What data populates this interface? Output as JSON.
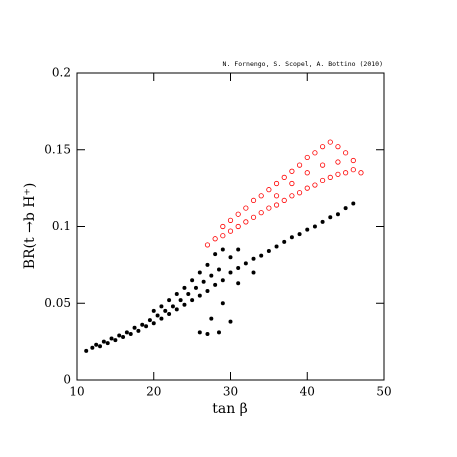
{
  "chart_data": {
    "type": "scatter",
    "annotation": "N. Fornengo, S. Scopel, A. Bottino  (2010)",
    "x_label": "tan β",
    "y_label": "BR(t →b H⁺)",
    "xlim": [
      10,
      50
    ],
    "xticks": [
      10,
      20,
      30,
      40,
      50
    ],
    "ylim": [
      0,
      0.2
    ],
    "yticks": [
      0,
      0.05,
      0.1,
      0.15,
      0.2
    ],
    "series": [
      {
        "color": "#000000",
        "marker": "filled",
        "x": [
          11.2,
          12,
          12.5,
          13,
          13.5,
          14,
          14.5,
          15,
          15.5,
          16,
          16.5,
          17,
          17.5,
          18,
          18.5,
          19,
          19.5,
          20,
          20,
          20.5,
          21,
          21,
          21.5,
          22,
          22,
          22.5,
          23,
          23,
          23.5,
          24,
          24,
          24.5,
          25,
          25,
          25.5,
          26,
          26,
          26.5,
          27,
          27,
          27.5,
          28,
          28,
          28.5,
          29,
          29,
          30,
          30,
          31,
          31,
          32,
          33,
          34,
          35,
          36,
          37,
          38,
          39,
          40,
          41,
          42,
          43,
          44,
          45,
          46,
          26,
          27,
          28.5,
          27.5,
          30,
          29,
          31,
          33
        ],
        "values": [
          0.019,
          0.021,
          0.023,
          0.022,
          0.025,
          0.024,
          0.027,
          0.026,
          0.029,
          0.028,
          0.031,
          0.03,
          0.034,
          0.032,
          0.036,
          0.035,
          0.039,
          0.037,
          0.045,
          0.042,
          0.04,
          0.048,
          0.045,
          0.043,
          0.052,
          0.048,
          0.046,
          0.056,
          0.052,
          0.049,
          0.06,
          0.056,
          0.052,
          0.065,
          0.06,
          0.055,
          0.07,
          0.064,
          0.058,
          0.075,
          0.068,
          0.062,
          0.082,
          0.072,
          0.065,
          0.085,
          0.07,
          0.08,
          0.073,
          0.085,
          0.076,
          0.079,
          0.081,
          0.084,
          0.087,
          0.09,
          0.093,
          0.095,
          0.098,
          0.1,
          0.103,
          0.106,
          0.108,
          0.112,
          0.115,
          0.031,
          0.03,
          0.031,
          0.04,
          0.038,
          0.05,
          0.063,
          0.07
        ]
      },
      {
        "color": "#ff0000",
        "marker": "open",
        "x": [
          27,
          28,
          29,
          29,
          30,
          30,
          31,
          31,
          32,
          32,
          33,
          33,
          34,
          34,
          35,
          35,
          36,
          36,
          37,
          37,
          38,
          38,
          39,
          39,
          40,
          40,
          41,
          41,
          42,
          42,
          43,
          43,
          44,
          44,
          45,
          45,
          46,
          46,
          47,
          36,
          38,
          40,
          42,
          44
        ],
        "values": [
          0.088,
          0.092,
          0.094,
          0.1,
          0.097,
          0.104,
          0.1,
          0.108,
          0.103,
          0.112,
          0.106,
          0.117,
          0.109,
          0.12,
          0.112,
          0.124,
          0.114,
          0.128,
          0.117,
          0.132,
          0.12,
          0.136,
          0.122,
          0.14,
          0.125,
          0.145,
          0.127,
          0.148,
          0.13,
          0.152,
          0.132,
          0.155,
          0.134,
          0.152,
          0.135,
          0.148,
          0.137,
          0.143,
          0.135,
          0.12,
          0.128,
          0.135,
          0.14,
          0.142
        ]
      }
    ]
  }
}
